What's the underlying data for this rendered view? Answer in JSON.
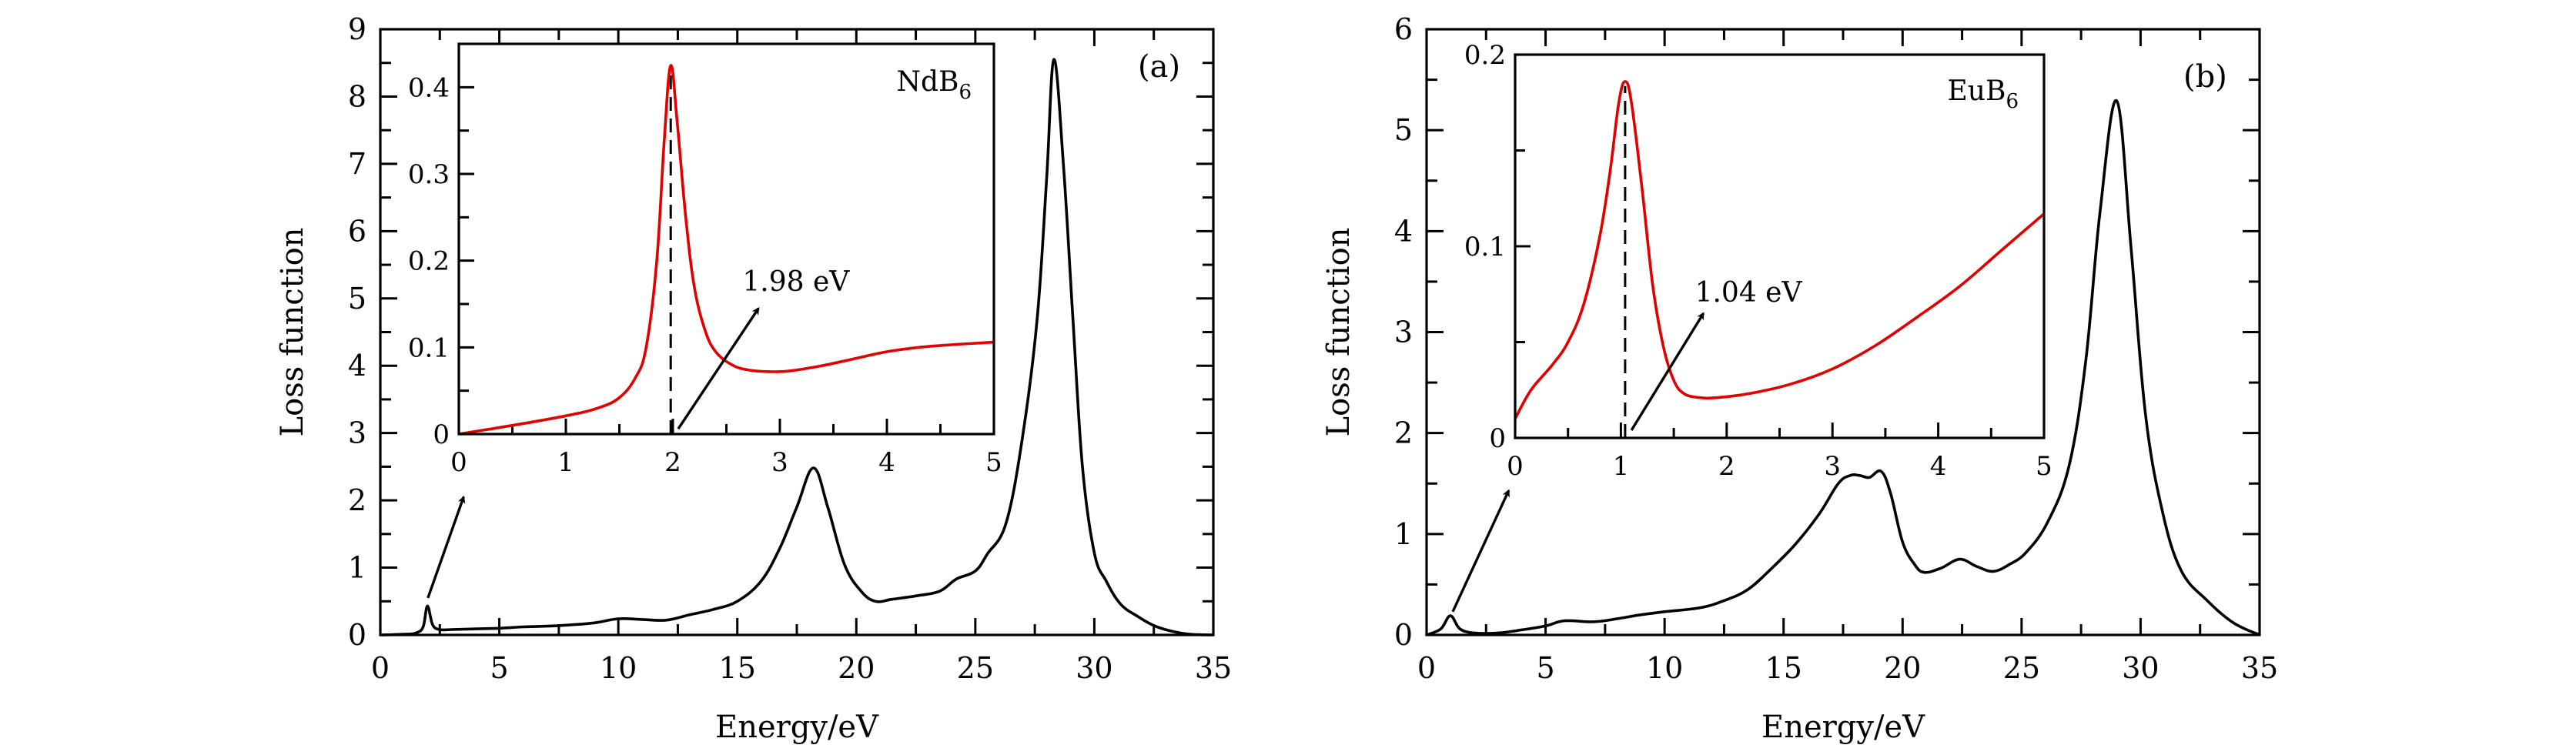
{
  "chart_data": [
    {
      "panel": "a",
      "type": "line",
      "panel_label": "(a)",
      "xlabel": "Energy/eV",
      "ylabel": "Loss function",
      "xlim": [
        0,
        35
      ],
      "ylim": [
        0,
        9
      ],
      "xticks": [
        0,
        5,
        10,
        15,
        20,
        25,
        30,
        35
      ],
      "yticks": [
        0,
        1,
        2,
        3,
        4,
        5,
        6,
        7,
        8,
        9
      ],
      "grid": false,
      "series": [
        {
          "name": "NdB6 loss function",
          "color": "#000000",
          "x": [
            0,
            1.0,
            1.5,
            1.8,
            1.98,
            2.2,
            2.5,
            3,
            4,
            5,
            6,
            7,
            8,
            9,
            10,
            11,
            12,
            13,
            14,
            15,
            16,
            16.8,
            17.5,
            18.2,
            18.8,
            19.5,
            20.2,
            20.8,
            21.5,
            22.5,
            23.5,
            24.2,
            25,
            25.5,
            26.3,
            27.0,
            27.6,
            28.0,
            28.3,
            28.7,
            29.1,
            29.5,
            30,
            30.5,
            31.1,
            31.8,
            32.5,
            33.2,
            34,
            35
          ],
          "y": [
            0,
            0.01,
            0.03,
            0.12,
            0.43,
            0.15,
            0.08,
            0.08,
            0.09,
            0.1,
            0.12,
            0.13,
            0.15,
            0.18,
            0.24,
            0.23,
            0.22,
            0.3,
            0.38,
            0.5,
            0.8,
            1.3,
            1.9,
            2.48,
            1.9,
            1.05,
            0.65,
            0.5,
            0.53,
            0.58,
            0.65,
            0.83,
            0.95,
            1.2,
            1.67,
            2.98,
            4.7,
            6.8,
            8.55,
            7.0,
            4.7,
            2.5,
            1.22,
            0.8,
            0.46,
            0.28,
            0.14,
            0.06,
            0.01,
            0
          ]
        }
      ],
      "annotations": [
        {
          "type": "arrow",
          "from_xy": [
            2.0,
            0.55
          ],
          "to_xy": [
            3.5,
            2.05
          ]
        }
      ],
      "inset": {
        "type": "line",
        "label": "NdB6",
        "label_main": "NdB",
        "label_sub": "6",
        "xlim": [
          0,
          5
        ],
        "ylim": [
          0,
          0.45
        ],
        "xticks": [
          0,
          1,
          2,
          3,
          4,
          5
        ],
        "xtick_labels": [
          "0",
          "1",
          "2",
          "3",
          "4",
          "5"
        ],
        "yticks": [
          0,
          0.1,
          0.2,
          0.3,
          0.4
        ],
        "ytick_labels": [
          "0",
          "0.1",
          "0.2",
          "0.3",
          "0.4"
        ],
        "series": [
          {
            "name": "NdB6 (0-5 eV)",
            "color": "#e00000",
            "x": [
              0,
              0.5,
              1.0,
              1.3,
              1.5,
              1.65,
              1.75,
              1.85,
              1.92,
              1.98,
              2.04,
              2.12,
              2.2,
              2.3,
              2.4,
              2.55,
              2.7,
              2.9,
              3.1,
              3.4,
              3.7,
              4.0,
              4.3,
              4.6,
              5.0
            ],
            "y": [
              0,
              0.01,
              0.021,
              0.03,
              0.042,
              0.065,
              0.1,
              0.2,
              0.34,
              0.425,
              0.36,
              0.25,
              0.17,
              0.12,
              0.095,
              0.08,
              0.074,
              0.072,
              0.073,
              0.079,
              0.087,
              0.095,
              0.1,
              0.103,
              0.106
            ]
          }
        ],
        "peak_marker": {
          "x": 1.98,
          "label": "1.98 eV"
        },
        "arrow": {
          "from_xy": [
            2.05,
            0.006
          ],
          "to_xy": [
            2.8,
            0.145
          ]
        },
        "annotation_text_xy": [
          2.65,
          0.165
        ]
      }
    },
    {
      "panel": "b",
      "type": "line",
      "panel_label": "(b)",
      "xlabel": "Energy/eV",
      "ylabel": "Loss function",
      "xlim": [
        0,
        35
      ],
      "ylim": [
        0,
        6
      ],
      "xticks": [
        0,
        5,
        10,
        15,
        20,
        25,
        30,
        35
      ],
      "yticks": [
        0,
        1,
        2,
        3,
        4,
        5,
        6
      ],
      "grid": false,
      "series": [
        {
          "name": "EuB6 loss function",
          "color": "#000000",
          "x": [
            0,
            0.6,
            1.0,
            1.4,
            2.0,
            3.0,
            4.0,
            5.0,
            5.8,
            7.0,
            8.0,
            9.0,
            10.0,
            11.5,
            12.5,
            13.5,
            14.5,
            15.5,
            16.5,
            17.3,
            17.8,
            18.2,
            18.6,
            19.1,
            19.5,
            20.0,
            20.5,
            20.9,
            21.6,
            22.4,
            23.1,
            23.8,
            24.5,
            25.2,
            26.1,
            27.0,
            27.7,
            28.3,
            29.0,
            29.6,
            30.2,
            30.9,
            31.7,
            32.8,
            33.9,
            35
          ],
          "y": [
            0,
            0.06,
            0.19,
            0.06,
            0.02,
            0.02,
            0.05,
            0.09,
            0.14,
            0.13,
            0.16,
            0.2,
            0.23,
            0.27,
            0.34,
            0.45,
            0.66,
            0.9,
            1.2,
            1.5,
            1.58,
            1.58,
            1.56,
            1.62,
            1.4,
            0.92,
            0.7,
            0.62,
            0.66,
            0.75,
            0.68,
            0.63,
            0.7,
            0.82,
            1.12,
            1.68,
            2.72,
            4.2,
            5.29,
            3.83,
            2.2,
            1.24,
            0.64,
            0.34,
            0.12,
            0
          ]
        }
      ],
      "annotations": [
        {
          "type": "arrow",
          "from_xy": [
            1.1,
            0.23
          ],
          "to_xy": [
            3.45,
            1.43
          ]
        }
      ],
      "inset": {
        "type": "line",
        "label": "EuB6",
        "label_main": "EuB",
        "label_sub": "6",
        "xlim": [
          0,
          5
        ],
        "ylim": [
          0,
          0.2
        ],
        "xticks": [
          0,
          1,
          2,
          3,
          4,
          5
        ],
        "xtick_labels": [
          "0",
          "1",
          "2",
          "3",
          "4",
          "5"
        ],
        "yticks": [
          0,
          0.1,
          0.2
        ],
        "ytick_labels": [
          "0",
          "0.1",
          "0.2"
        ],
        "series": [
          {
            "name": "EuB6 (0-5 eV)",
            "color": "#e00000",
            "x": [
              0,
              0.15,
              0.35,
              0.5,
              0.65,
              0.8,
              0.9,
              0.98,
              1.04,
              1.1,
              1.2,
              1.3,
              1.4,
              1.5,
              1.6,
              1.75,
              1.9,
              2.2,
              2.6,
              3.0,
              3.4,
              3.8,
              4.2,
              4.6,
              5.0
            ],
            "y": [
              0.01,
              0.025,
              0.038,
              0.05,
              0.07,
              0.105,
              0.14,
              0.175,
              0.186,
              0.175,
              0.13,
              0.08,
              0.048,
              0.03,
              0.023,
              0.021,
              0.021,
              0.023,
              0.028,
              0.036,
              0.048,
              0.063,
              0.079,
              0.098,
              0.117
            ]
          }
        ],
        "peak_marker": {
          "x": 1.04,
          "label": "1.04 eV"
        },
        "arrow": {
          "from_xy": [
            1.1,
            0.004
          ],
          "to_xy": [
            1.78,
            0.065
          ]
        },
        "annotation_text_xy": [
          1.7,
          0.071
        ]
      }
    }
  ]
}
